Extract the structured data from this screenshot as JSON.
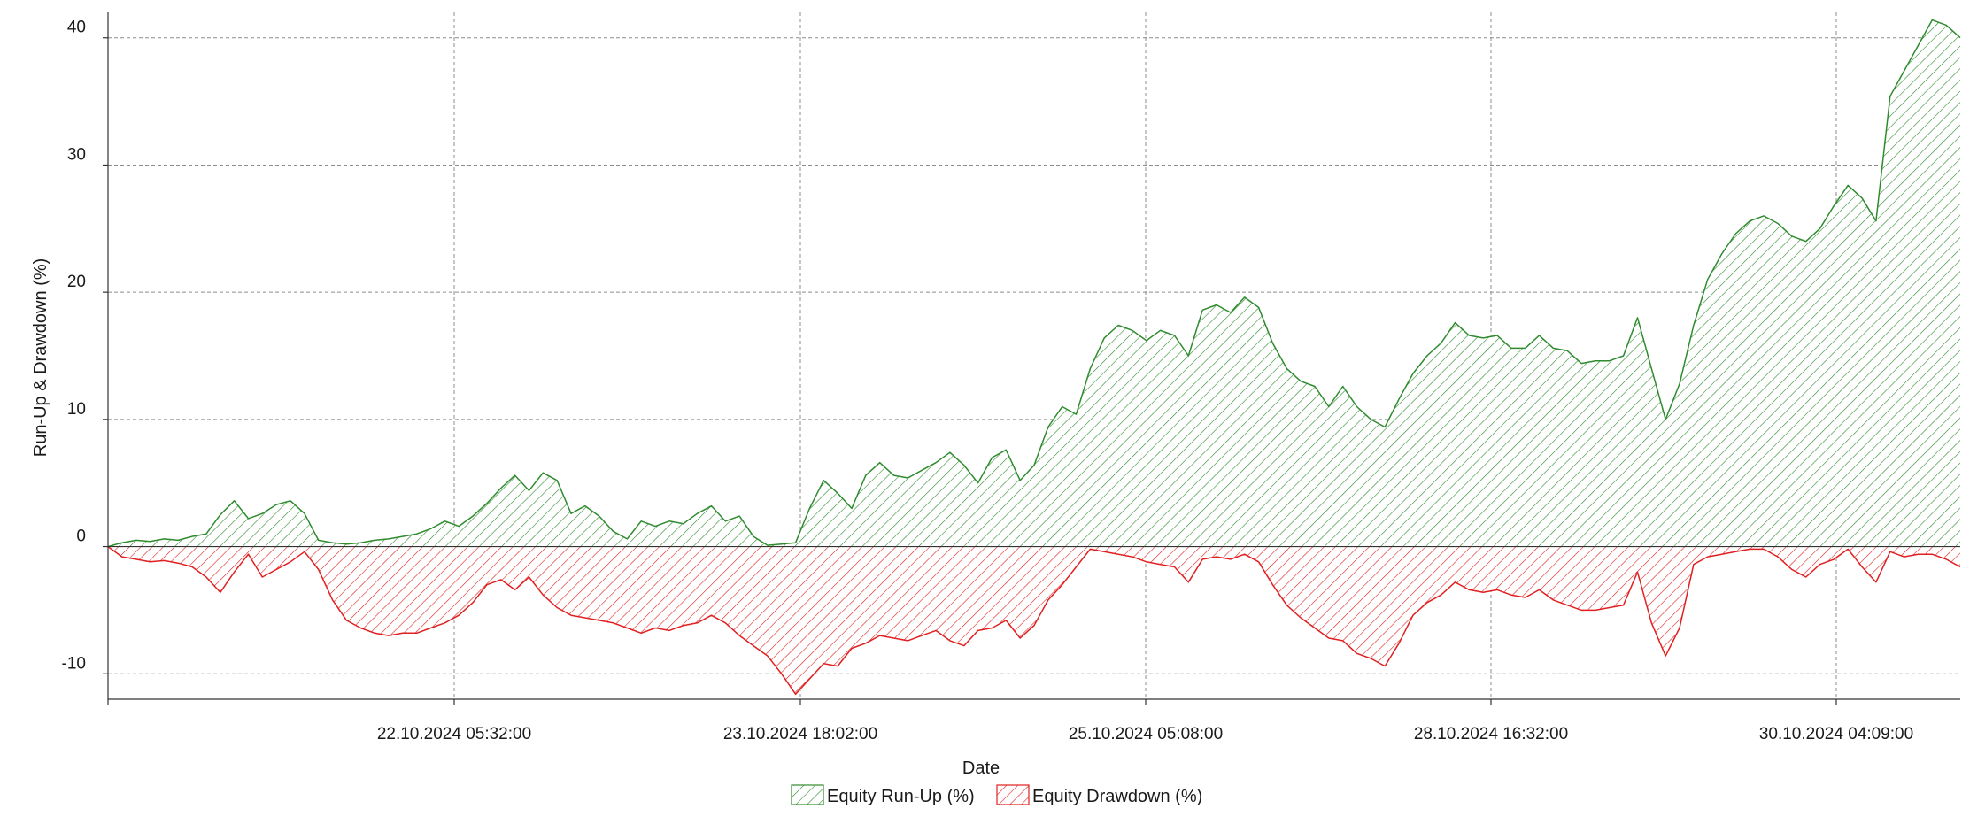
{
  "chart_data": {
    "type": "area",
    "title": "",
    "xlabel": "Date",
    "ylabel": "Run-Up & Drawdown (%)",
    "ylim": [
      -12,
      42
    ],
    "yticks": [
      -10,
      0,
      10,
      20,
      30,
      40
    ],
    "grid": true,
    "legend_position": "bottom-center",
    "x_tick_labels": [
      "22.10.2024 05:32:00",
      "23.10.2024 18:02:00",
      "25.10.2024 05:08:00",
      "28.10.2024 16:32:00",
      "30.10.2024 04:09:00"
    ],
    "series": [
      {
        "name": "Equity Run-Up (%)",
        "color": "#2e8b2e",
        "fill_pattern": "diagonal-hatch",
        "values": [
          0,
          0.3,
          0.5,
          0.4,
          0.6,
          0.5,
          0.8,
          1.0,
          2.5,
          3.6,
          2.2,
          2.6,
          3.3,
          3.6,
          2.6,
          0.5,
          0.3,
          0.2,
          0.3,
          0.5,
          0.6,
          0.8,
          1.0,
          1.4,
          2.0,
          1.6,
          2.4,
          3.4,
          4.6,
          5.6,
          4.4,
          5.8,
          5.2,
          2.6,
          3.2,
          2.4,
          1.2,
          0.6,
          2.0,
          1.6,
          2.0,
          1.8,
          2.6,
          3.2,
          2.0,
          2.4,
          0.8,
          0.1,
          0.2,
          0.3,
          3.0,
          5.2,
          4.2,
          3.0,
          5.6,
          6.6,
          5.6,
          5.4,
          6.0,
          6.6,
          7.4,
          6.4,
          5.0,
          7.0,
          7.6,
          5.2,
          6.4,
          9.4,
          11.0,
          10.4,
          14.0,
          16.4,
          17.4,
          17.0,
          16.2,
          17.0,
          16.6,
          15.0,
          18.6,
          19.0,
          18.4,
          19.6,
          18.8,
          16.0,
          14.0,
          13.0,
          12.6,
          11.0,
          12.6,
          11.0,
          10.0,
          9.4,
          11.6,
          13.6,
          15.0,
          16.0,
          17.6,
          16.6,
          16.4,
          16.6,
          15.6,
          15.6,
          16.6,
          15.6,
          15.4,
          14.4,
          14.6,
          14.6,
          15.0,
          18.0,
          14.0,
          10.0,
          12.8,
          17.4,
          21.0,
          23.0,
          24.6,
          25.6,
          26.0,
          25.4,
          24.4,
          24.0,
          25.0,
          26.8,
          28.4,
          27.4,
          25.6,
          35.4,
          37.4,
          39.4,
          41.4,
          41.0,
          40.0
        ]
      },
      {
        "name": "Equity Drawdown (%)",
        "color": "#e02020",
        "fill_pattern": "diagonal-hatch",
        "values": [
          0,
          -0.8,
          -1.0,
          -1.2,
          -1.1,
          -1.3,
          -1.6,
          -2.4,
          -3.6,
          -2.0,
          -0.6,
          -2.4,
          -1.8,
          -1.2,
          -0.4,
          -1.8,
          -4.2,
          -5.8,
          -6.4,
          -6.8,
          -7.0,
          -6.8,
          -6.8,
          -6.4,
          -6.0,
          -5.4,
          -4.4,
          -3.0,
          -2.6,
          -3.4,
          -2.4,
          -3.8,
          -4.8,
          -5.4,
          -5.6,
          -5.8,
          -6.0,
          -6.4,
          -6.8,
          -6.4,
          -6.6,
          -6.2,
          -6.0,
          -5.4,
          -6.0,
          -7.0,
          -7.8,
          -8.6,
          -10.0,
          -11.6,
          -10.4,
          -9.2,
          -9.4,
          -8.0,
          -7.6,
          -7.0,
          -7.2,
          -7.4,
          -7.0,
          -6.6,
          -7.4,
          -7.8,
          -6.6,
          -6.4,
          -5.8,
          -7.2,
          -6.2,
          -4.2,
          -3.0,
          -1.6,
          -0.2,
          -0.4,
          -0.6,
          -0.8,
          -1.2,
          -1.4,
          -1.6,
          -2.8,
          -1.0,
          -0.8,
          -1.0,
          -0.6,
          -1.2,
          -3.0,
          -4.6,
          -5.6,
          -6.4,
          -7.2,
          -7.4,
          -8.4,
          -8.8,
          -9.4,
          -7.6,
          -5.4,
          -4.4,
          -3.8,
          -2.8,
          -3.4,
          -3.6,
          -3.4,
          -3.8,
          -4.0,
          -3.4,
          -4.2,
          -4.6,
          -5.0,
          -5.0,
          -4.8,
          -4.6,
          -2.0,
          -6.0,
          -8.6,
          -6.4,
          -1.4,
          -0.8,
          -0.6,
          -0.4,
          -0.2,
          -0.2,
          -0.8,
          -1.8,
          -2.4,
          -1.4,
          -1.0,
          -0.2,
          -1.6,
          -2.8,
          -0.4,
          -0.8,
          -0.6,
          -0.6,
          -1.0,
          -1.6
        ]
      }
    ]
  }
}
